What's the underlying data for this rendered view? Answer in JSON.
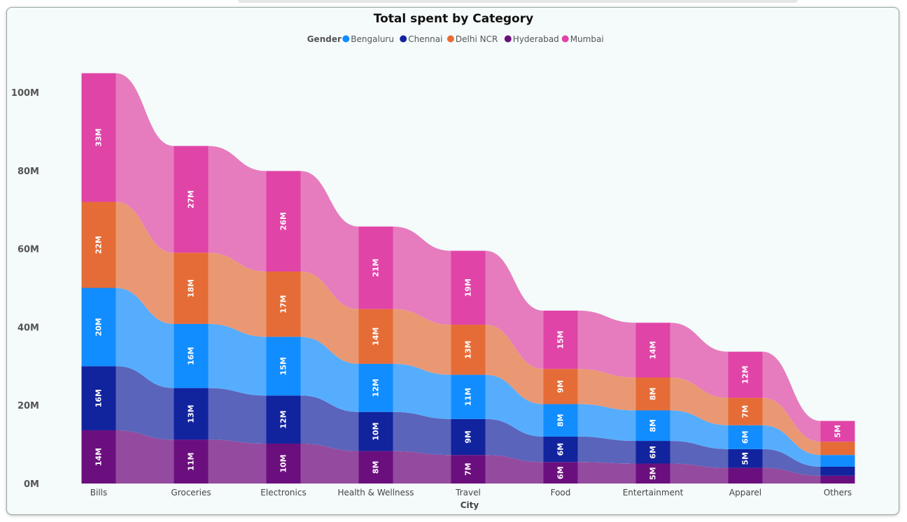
{
  "chart_data": {
    "type": "ribbon",
    "title": "Total spent by Category",
    "legend_title": "Gender",
    "legend_position": "top-center",
    "xlabel": "City",
    "ylabel": "",
    "ylim": [
      0,
      105
    ],
    "yticks": [
      "0M",
      "20M",
      "40M",
      "60M",
      "80M",
      "100M"
    ],
    "yticks_values": [
      0,
      20,
      40,
      60,
      80,
      100
    ],
    "categories": [
      "Bills",
      "Groceries",
      "Electronics",
      "Health & Wellness",
      "Travel",
      "Food",
      "Entertainment",
      "Apparel",
      "Others"
    ],
    "series": [
      {
        "name": "Hyderabad",
        "color": "#6b0f7e",
        "ribbon_color": "#944b9f",
        "values": [
          13.6,
          11.2,
          10.2,
          8.3,
          7.3,
          5.5,
          5.1,
          4.0,
          2.0
        ],
        "labels": [
          "14M",
          "11M",
          "10M",
          "8M",
          "7M",
          "6M",
          "5M",
          "",
          ""
        ]
      },
      {
        "name": "Chennai",
        "color": "#12239e",
        "ribbon_color": "#5a64bb",
        "values": [
          16.4,
          13.2,
          12.3,
          10.0,
          9.2,
          6.5,
          5.8,
          4.8,
          2.3
        ],
        "labels": [
          "16M",
          "13M",
          "12M",
          "10M",
          "9M",
          "6M",
          "6M",
          "5M",
          ""
        ]
      },
      {
        "name": "Bengaluru",
        "color": "#118dff",
        "ribbon_color": "#57adfd",
        "values": [
          20.0,
          16.4,
          15.0,
          12.3,
          11.3,
          8.3,
          7.8,
          6.1,
          3.0
        ],
        "labels": [
          "20M",
          "16M",
          "15M",
          "12M",
          "11M",
          "8M",
          "8M",
          "6M",
          ""
        ]
      },
      {
        "name": "Delhi NCR",
        "color": "#e66c37",
        "ribbon_color": "#ea9873",
        "values": [
          22.0,
          18.2,
          16.7,
          14.0,
          12.8,
          9.0,
          8.4,
          7.0,
          3.4
        ],
        "labels": [
          "22M",
          "18M",
          "17M",
          "14M",
          "13M",
          "9M",
          "8M",
          "7M",
          ""
        ]
      },
      {
        "name": "Mumbai",
        "color": "#e044a7",
        "ribbon_color": "#e67cbe",
        "values": [
          32.9,
          27.3,
          25.7,
          21.1,
          18.9,
          14.9,
          14.0,
          11.8,
          5.3
        ],
        "labels": [
          "33M",
          "27M",
          "26M",
          "21M",
          "19M",
          "15M",
          "14M",
          "12M",
          "5M"
        ]
      }
    ],
    "legend_order": [
      "Bengaluru",
      "Chennai",
      "Delhi NCR",
      "Hyderabad",
      "Mumbai"
    ]
  }
}
